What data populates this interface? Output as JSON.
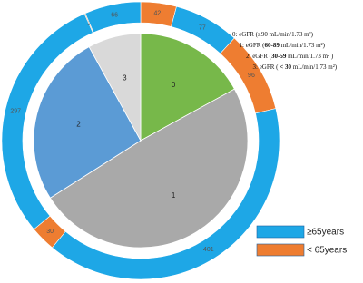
{
  "chart_data": {
    "type": "nested-pie",
    "categories": [
      "0",
      "1",
      "2",
      "3"
    ],
    "values": [
      17,
      49,
      26,
      8
    ],
    "colors": [
      "#77b84a",
      "#a9a9a9",
      "#5b9bd5",
      "#d9d9d9"
    ],
    "series": [
      {
        "name": "< 65years",
        "color": "#ee7d31",
        "values": [
          42,
          96,
          30,
          1
        ]
      },
      {
        "name": "≥65years",
        "color": "#1ea7e6",
        "values": [
          77,
          401,
          297,
          66
        ]
      }
    ],
    "annotations": [
      [
        "0: eGFR (≥90 mL/min/1.73 m²)"
      ],
      [
        "1: eGFR (",
        "60-89",
        " mL/min/1.73 m²)"
      ],
      [
        "2: eGFR (",
        "30-59",
        " mL/min/1.73 m² )"
      ],
      [
        "3: eGFR ( ",
        "< 30",
        " mL/min/1.73 m²)"
      ]
    ]
  }
}
